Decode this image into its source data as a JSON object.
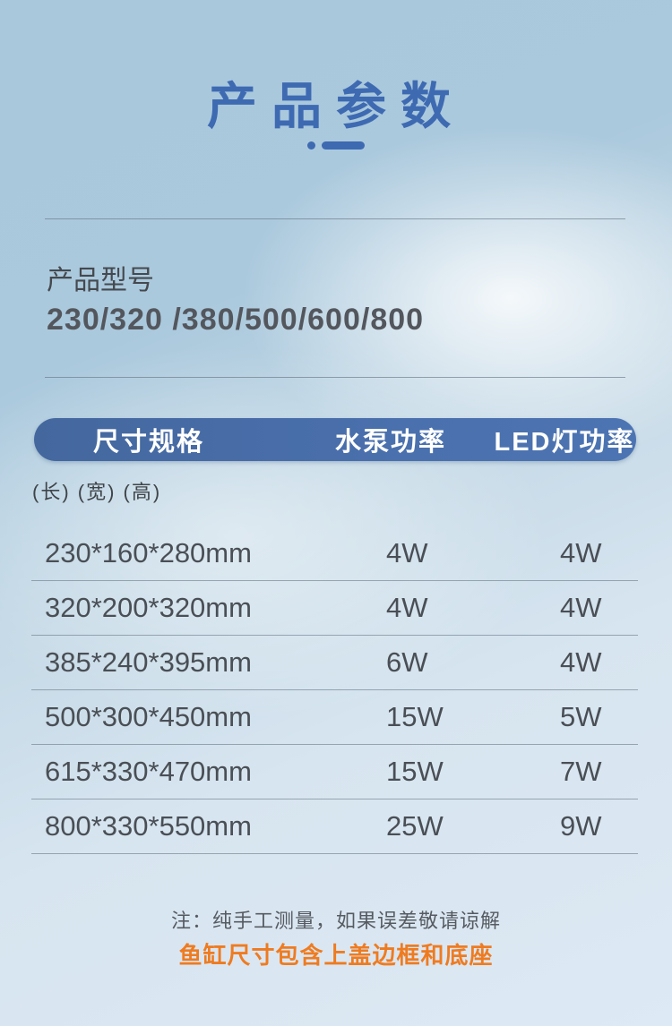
{
  "page": {
    "title": "产品参数",
    "accent_color": "#3e6ab2",
    "header_bar_color": "#4a70ad",
    "note_orange_color": "#ef7b20",
    "background_top_color": "#abc9dd",
    "background_bottom_color": "#dde9f4"
  },
  "model_section": {
    "label": "产品型号",
    "models": "230/320 /380/500/600/800"
  },
  "table": {
    "headers": {
      "size": "尺寸规格",
      "pump_power": "水泵功率",
      "led_power": "LED灯功率"
    },
    "subheader": "(长) (宽) (高)",
    "rows": [
      {
        "size": "230*160*280mm",
        "pump": "4W",
        "led": "4W"
      },
      {
        "size": "320*200*320mm",
        "pump": "4W",
        "led": "4W"
      },
      {
        "size": "385*240*395mm",
        "pump": "6W",
        "led": "4W"
      },
      {
        "size": "500*300*450mm",
        "pump": "15W",
        "led": "5W"
      },
      {
        "size": "615*330*470mm",
        "pump": "15W",
        "led": "7W"
      },
      {
        "size": "800*330*550mm",
        "pump": "25W",
        "led": "9W"
      }
    ]
  },
  "notes": {
    "measure": "注：纯手工测量，如果误差敬请谅解",
    "include": "鱼缸尺寸包含上盖边框和底座"
  }
}
